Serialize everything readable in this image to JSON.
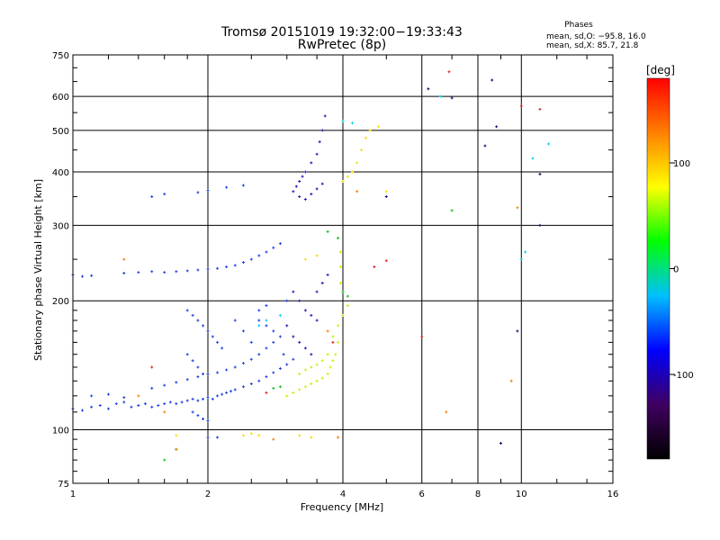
{
  "header": {
    "title_line1": "Tromsø 20151019 19:32:00−19:33:43",
    "title_line2": "RwPretec (8p)",
    "phases_title": "Phases",
    "phases_o": "mean, sd,O: −95.8, 16.0",
    "phases_x": "mean, sd,X:  85.7, 21.8"
  },
  "chart_data": {
    "type": "scatter",
    "title": "Tromsø 20151019 19:32:00−19:33:43",
    "subtitle": "RwPretec (8p)",
    "xlabel": "Frequency [MHz]",
    "ylabel": "Stationary phase Virtual Height [km]",
    "x_scale": "log",
    "y_scale": "log",
    "xlim": [
      1,
      16
    ],
    "ylim": [
      75,
      750
    ],
    "x_ticks": [
      1,
      2,
      4,
      6,
      8,
      10,
      16
    ],
    "x_tick_labels": [
      "1",
      "2",
      "4",
      "6",
      "8",
      "10",
      "16"
    ],
    "y_ticks": [
      75,
      100,
      200,
      300,
      400,
      500,
      600,
      750
    ],
    "y_tick_labels": [
      "75",
      "100",
      "200",
      "300",
      "400",
      "500",
      "600",
      "750"
    ],
    "grid": true,
    "colorbar": {
      "label": "[deg]",
      "range": [
        -180,
        180
      ],
      "ticks": [
        100,
        0,
        -100
      ],
      "tick_labels": [
        "100",
        "0",
        "-100"
      ],
      "colors": [
        "#000000",
        "#400060",
        "#0000ff",
        "#00c0ff",
        "#00ff00",
        "#ffff00",
        "#ff8000",
        "#ff0000"
      ]
    },
    "series": [
      {
        "color": "#1f3fe0",
        "points": [
          [
            1.0,
            112
          ],
          [
            1.05,
            111
          ],
          [
            1.1,
            113
          ],
          [
            1.15,
            114
          ],
          [
            1.2,
            112
          ],
          [
            1.25,
            115
          ],
          [
            1.3,
            116
          ],
          [
            1.35,
            113
          ],
          [
            1.4,
            114
          ],
          [
            1.45,
            115
          ],
          [
            1.5,
            113
          ],
          [
            1.55,
            114
          ],
          [
            1.6,
            115
          ],
          [
            1.65,
            116
          ],
          [
            1.7,
            115
          ],
          [
            1.75,
            116
          ],
          [
            1.8,
            117
          ],
          [
            1.85,
            118
          ],
          [
            1.9,
            117
          ],
          [
            1.95,
            118
          ],
          [
            2.0,
            119
          ],
          [
            2.05,
            118
          ],
          [
            2.1,
            120
          ],
          [
            2.15,
            121
          ],
          [
            2.2,
            122
          ],
          [
            2.25,
            123
          ],
          [
            2.3,
            124
          ],
          [
            2.4,
            126
          ],
          [
            2.5,
            128
          ],
          [
            2.6,
            130
          ],
          [
            2.7,
            133
          ],
          [
            2.8,
            136
          ],
          [
            2.9,
            139
          ],
          [
            3.0,
            142
          ],
          [
            3.1,
            146
          ],
          [
            1.1,
            120
          ],
          [
            1.2,
            121
          ],
          [
            1.3,
            119
          ],
          [
            1.5,
            125
          ],
          [
            1.6,
            127
          ],
          [
            1.7,
            129
          ],
          [
            1.8,
            131
          ],
          [
            1.9,
            133
          ],
          [
            2.0,
            135
          ],
          [
            2.1,
            136
          ],
          [
            2.2,
            138
          ],
          [
            2.3,
            140
          ],
          [
            2.4,
            143
          ],
          [
            2.5,
            146
          ],
          [
            2.6,
            150
          ],
          [
            2.7,
            155
          ],
          [
            2.8,
            160
          ],
          [
            1.8,
            190
          ],
          [
            1.85,
            185
          ],
          [
            1.9,
            180
          ],
          [
            1.95,
            175
          ],
          [
            2.0,
            170
          ],
          [
            2.05,
            165
          ],
          [
            2.1,
            160
          ],
          [
            2.15,
            155
          ],
          [
            1.8,
            150
          ],
          [
            1.85,
            145
          ],
          [
            1.9,
            140
          ],
          [
            1.95,
            135
          ],
          [
            1.85,
            110
          ],
          [
            1.9,
            108
          ],
          [
            1.95,
            106
          ],
          [
            2.0,
            105
          ],
          [
            1.0,
            230
          ],
          [
            1.05,
            228
          ],
          [
            1.1,
            229
          ],
          [
            1.3,
            232
          ],
          [
            1.4,
            233
          ],
          [
            1.5,
            234
          ],
          [
            1.6,
            233
          ],
          [
            1.7,
            234
          ],
          [
            1.8,
            235
          ],
          [
            1.9,
            236
          ],
          [
            2.0,
            237
          ],
          [
            2.1,
            238
          ],
          [
            2.2,
            240
          ],
          [
            2.3,
            242
          ],
          [
            2.4,
            246
          ],
          [
            2.5,
            250
          ],
          [
            2.6,
            255
          ],
          [
            2.7,
            260
          ],
          [
            2.8,
            266
          ],
          [
            2.9,
            272
          ],
          [
            1.5,
            350
          ],
          [
            1.6,
            355
          ],
          [
            1.9,
            358
          ],
          [
            2.0,
            362
          ],
          [
            2.2,
            368
          ],
          [
            2.4,
            372
          ],
          [
            2.6,
            180
          ],
          [
            2.7,
            175
          ],
          [
            2.8,
            170
          ],
          [
            2.9,
            165
          ],
          [
            2.6,
            190
          ],
          [
            2.7,
            195
          ],
          [
            3.0,
            200
          ],
          [
            2.95,
            150
          ],
          [
            2.5,
            160
          ],
          [
            2.4,
            170
          ],
          [
            2.3,
            180
          ],
          [
            2.0,
            96
          ],
          [
            2.1,
            96
          ]
        ]
      },
      {
        "color": "#3010b0",
        "points": [
          [
            3.1,
            360
          ],
          [
            3.15,
            370
          ],
          [
            3.2,
            380
          ],
          [
            3.25,
            390
          ],
          [
            3.3,
            400
          ],
          [
            3.2,
            350
          ],
          [
            3.3,
            345
          ],
          [
            3.4,
            355
          ],
          [
            3.5,
            365
          ],
          [
            3.6,
            375
          ],
          [
            3.4,
            420
          ],
          [
            3.5,
            440
          ],
          [
            3.55,
            470
          ],
          [
            3.6,
            500
          ],
          [
            3.65,
            540
          ],
          [
            3.1,
            210
          ],
          [
            3.2,
            200
          ],
          [
            3.3,
            190
          ],
          [
            3.4,
            185
          ],
          [
            3.5,
            180
          ],
          [
            3.0,
            175
          ],
          [
            3.1,
            165
          ],
          [
            3.2,
            160
          ],
          [
            3.3,
            155
          ],
          [
            3.4,
            150
          ],
          [
            3.5,
            210
          ],
          [
            3.6,
            220
          ],
          [
            3.7,
            230
          ]
        ]
      },
      {
        "color": "#c8f000",
        "points": [
          [
            3.0,
            120
          ],
          [
            3.1,
            122
          ],
          [
            3.2,
            124
          ],
          [
            3.3,
            126
          ],
          [
            3.4,
            128
          ],
          [
            3.5,
            130
          ],
          [
            3.6,
            132
          ],
          [
            3.7,
            135
          ],
          [
            3.75,
            140
          ],
          [
            3.8,
            145
          ],
          [
            3.85,
            150
          ],
          [
            3.9,
            160
          ],
          [
            3.2,
            135
          ],
          [
            3.3,
            138
          ],
          [
            3.4,
            140
          ],
          [
            3.5,
            142
          ],
          [
            3.6,
            145
          ],
          [
            3.7,
            150
          ],
          [
            3.8,
            165
          ],
          [
            3.9,
            175
          ],
          [
            4.0,
            185
          ],
          [
            4.1,
            195
          ],
          [
            3.95,
            220
          ],
          [
            3.95,
            240
          ],
          [
            3.95,
            260
          ]
        ]
      },
      {
        "color": "#f0e000",
        "points": [
          [
            4.0,
            380
          ],
          [
            4.1,
            390
          ],
          [
            4.2,
            400
          ],
          [
            4.3,
            420
          ],
          [
            4.4,
            450
          ],
          [
            4.5,
            480
          ],
          [
            4.6,
            500
          ],
          [
            4.8,
            510
          ],
          [
            5.0,
            360
          ],
          [
            2.4,
            97
          ],
          [
            2.5,
            98
          ],
          [
            2.6,
            97
          ],
          [
            1.7,
            97
          ],
          [
            3.2,
            97
          ],
          [
            3.4,
            96
          ],
          [
            3.3,
            250
          ],
          [
            3.5,
            255
          ]
        ]
      },
      {
        "color": "#00d0f0",
        "points": [
          [
            2.6,
            175
          ],
          [
            2.7,
            180
          ],
          [
            2.9,
            185
          ],
          [
            4.2,
            520
          ],
          [
            4.0,
            525
          ],
          [
            6.6,
            600
          ],
          [
            10.0,
            250
          ],
          [
            10.2,
            260
          ],
          [
            11.5,
            465
          ],
          [
            10.6,
            430
          ]
        ]
      },
      {
        "color": "#10c010",
        "points": [
          [
            1.6,
            85
          ],
          [
            1.7,
            90
          ],
          [
            3.7,
            290
          ],
          [
            3.9,
            280
          ],
          [
            4.0,
            210
          ],
          [
            4.1,
            205
          ],
          [
            7.0,
            325
          ],
          [
            2.8,
            125
          ],
          [
            2.9,
            126
          ]
        ]
      },
      {
        "color": "#e02020",
        "points": [
          [
            6.9,
            685
          ],
          [
            10.0,
            570
          ],
          [
            11.0,
            560
          ],
          [
            4.7,
            240
          ],
          [
            5.0,
            248
          ],
          [
            3.8,
            160
          ],
          [
            6.0,
            165
          ],
          [
            1.5,
            140
          ],
          [
            2.7,
            122
          ]
        ]
      },
      {
        "color": "#f08000",
        "points": [
          [
            1.3,
            250
          ],
          [
            1.4,
            120
          ],
          [
            1.6,
            110
          ],
          [
            1.7,
            90
          ],
          [
            2.8,
            95
          ],
          [
            3.9,
            96
          ],
          [
            3.7,
            170
          ],
          [
            6.8,
            110
          ],
          [
            9.8,
            330
          ],
          [
            9.5,
            130
          ],
          [
            4.3,
            360
          ]
        ]
      },
      {
        "color": "#101070",
        "points": [
          [
            6.2,
            625
          ],
          [
            8.6,
            655
          ],
          [
            8.3,
            460
          ],
          [
            8.8,
            510
          ],
          [
            9.8,
            170
          ],
          [
            9.0,
            93
          ],
          [
            7.0,
            595
          ],
          [
            11.0,
            300
          ],
          [
            11.0,
            395
          ],
          [
            5.0,
            350
          ]
        ]
      }
    ]
  }
}
